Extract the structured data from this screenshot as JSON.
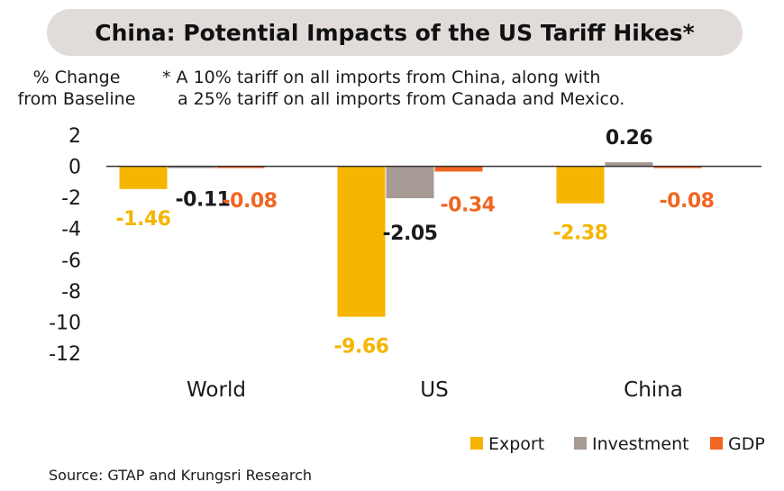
{
  "header": {
    "title": "China: Potential Impacts of the US Tariff Hikes*"
  },
  "axis": {
    "ylabel_line1": "% Change",
    "ylabel_line2": "from Baseline"
  },
  "note": {
    "line1": "* A 10% tariff on all imports from China, along with",
    "line2": "a 25% tariff on all imports from Canada and Mexico."
  },
  "source": "Source: GTAP and Krungsri Research",
  "colors": {
    "export": "#f5b500",
    "investment": "#a89a94",
    "gdp": "#f26522",
    "title_bg": "#e1dcda",
    "axis_line": "#333333",
    "text": "#1a1a1a"
  },
  "chart_data": {
    "type": "bar",
    "title": "China: Potential Impacts of the US Tariff Hikes*",
    "ylabel": "% Change from Baseline",
    "xlabel": "",
    "categories": [
      "World",
      "US",
      "China"
    ],
    "ylim": [
      -12,
      2
    ],
    "yticks": [
      2,
      0,
      -2,
      -4,
      -6,
      -8,
      -10,
      -12
    ],
    "ytick_labels": [
      "2",
      "0",
      "-2",
      "-4",
      "-6",
      "-8",
      "-10",
      "-12"
    ],
    "grid": false,
    "legend_position": "bottom-right",
    "series": [
      {
        "name": "Export",
        "color": "#f5b500",
        "values": [
          -1.46,
          -9.66,
          -2.38
        ],
        "labels": [
          "-1.46",
          "-9.66",
          "-2.38"
        ]
      },
      {
        "name": "Investment",
        "color": "#a89a94",
        "values": [
          -0.11,
          -2.05,
          0.26
        ],
        "labels": [
          "-0.11",
          "-2.05",
          "0.26"
        ]
      },
      {
        "name": "GDP",
        "color": "#f26522",
        "values": [
          -0.08,
          -0.34,
          -0.08
        ],
        "labels": [
          "-0.08",
          "-0.34",
          "-0.08"
        ]
      }
    ]
  }
}
